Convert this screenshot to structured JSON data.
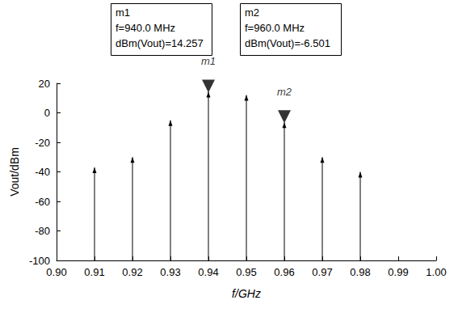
{
  "chart_data": {
    "type": "stem",
    "x_label": "f/GHz",
    "y_label": "Vout/dBm",
    "x": [
      0.91,
      0.92,
      0.93,
      0.94,
      0.95,
      0.96,
      0.97,
      0.98
    ],
    "values": [
      -37,
      -30,
      -5,
      14.257,
      12,
      -6.501,
      -30,
      -40
    ],
    "color": "#000000",
    "xlim": [
      0.9,
      1.0
    ],
    "xticks": [
      {
        "value": 0.9,
        "label": "0.90"
      },
      {
        "value": 0.91,
        "label": "0.91"
      },
      {
        "value": 0.92,
        "label": "0.92"
      },
      {
        "value": 0.93,
        "label": "0.93"
      },
      {
        "value": 0.94,
        "label": "0.94"
      },
      {
        "value": 0.95,
        "label": "0.95"
      },
      {
        "value": 0.96,
        "label": "0.96"
      },
      {
        "value": 0.97,
        "label": "0.97"
      },
      {
        "value": 0.98,
        "label": "0.98"
      },
      {
        "value": 0.99,
        "label": "0.99"
      },
      {
        "value": 1.0,
        "label": "1.00"
      }
    ],
    "ylim": [
      -100,
      20
    ],
    "yticks": [
      -100,
      -80,
      -60,
      -40,
      -20,
      0,
      20
    ],
    "grid": false,
    "annotations": [
      {
        "name": "m1",
        "x": 0.94,
        "y": 14.257,
        "text": [
          "m1",
          "f=940.0 MHz",
          "dBm(Vout)=14.257"
        ]
      },
      {
        "name": "m2",
        "x": 0.96,
        "y": -6.501,
        "text": [
          "m2",
          "f=960.0 MHz",
          "dBm(Vout)=-6.501"
        ]
      }
    ]
  }
}
